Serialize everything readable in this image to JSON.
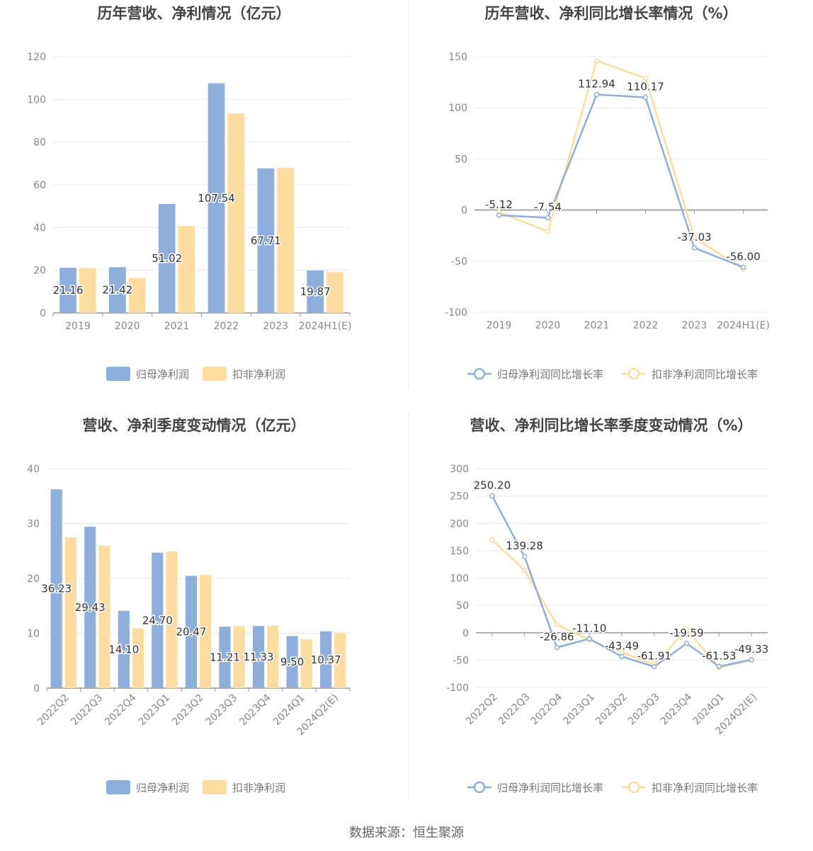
{
  "colors": {
    "primary": "#8eaedc",
    "secondary": "#fedc9f",
    "grid": "#e8e8ee",
    "axis": "#999999"
  },
  "source": "数据来源：恒生聚源",
  "chart_data": [
    {
      "id": "annual-values",
      "type": "bar",
      "title": "历年营收、净利情况（亿元）",
      "categories": [
        "2019",
        "2020",
        "2021",
        "2022",
        "2023",
        "2024H1(E)"
      ],
      "series": [
        {
          "name": "归母净利润",
          "values": [
            21.16,
            21.42,
            51.02,
            107.54,
            67.71,
            19.87
          ],
          "labels": [
            "21.16",
            "21.42",
            "51.02",
            "107.54",
            "67.71",
            "19.87"
          ]
        },
        {
          "name": "扣非净利润",
          "values": [
            21.0,
            16.4,
            40.7,
            93.4,
            68.0,
            19.1
          ]
        }
      ],
      "ylim": [
        0,
        120
      ],
      "yticks": [
        0,
        20,
        40,
        60,
        80,
        100,
        120
      ],
      "legend": "bottom"
    },
    {
      "id": "annual-growth",
      "type": "line",
      "title": "历年营收、净利同比增长率情况（%）",
      "categories": [
        "2019",
        "2020",
        "2021",
        "2022",
        "2023",
        "2024H1(E)"
      ],
      "series": [
        {
          "name": "归母净利润同比增长率",
          "values": [
            -5.12,
            -7.54,
            112.94,
            110.17,
            -37.03,
            -56.0
          ],
          "labels": [
            "-5.12",
            "-7.54",
            "112.94",
            "110.17",
            "-37.03",
            "-56.00"
          ]
        },
        {
          "name": "扣非净利润同比增长率",
          "values": [
            -2,
            -21,
            146,
            129,
            -27,
            -58
          ]
        }
      ],
      "ylim": [
        -100,
        150
      ],
      "yticks": [
        -100,
        -50,
        0,
        50,
        100,
        150
      ],
      "legend": "bottom"
    },
    {
      "id": "quarterly-values",
      "type": "bar",
      "title": "营收、净利季度变动情况（亿元）",
      "categories": [
        "2022Q2",
        "2022Q3",
        "2022Q4",
        "2023Q1",
        "2023Q2",
        "2023Q3",
        "2023Q4",
        "2024Q1",
        "2024Q2(E)"
      ],
      "series": [
        {
          "name": "归母净利润",
          "values": [
            36.23,
            29.43,
            14.1,
            24.7,
            20.47,
            11.21,
            11.33,
            9.5,
            10.37
          ],
          "labels": [
            "36.23",
            "29.43",
            "14.10",
            "24.70",
            "20.47",
            "11.21",
            "11.33",
            "9.50",
            "10.37"
          ]
        },
        {
          "name": "扣非净利润",
          "values": [
            27.5,
            26.0,
            10.9,
            24.9,
            20.6,
            11.3,
            11.4,
            8.9,
            10.1
          ]
        }
      ],
      "ylim": [
        0,
        40
      ],
      "yticks": [
        0,
        10,
        20,
        30,
        40
      ],
      "legend": "bottom"
    },
    {
      "id": "quarterly-growth",
      "type": "line",
      "title": "营收、净利同比增长率季度变动情况（%）",
      "categories": [
        "2022Q2",
        "2022Q3",
        "2022Q4",
        "2023Q1",
        "2023Q2",
        "2023Q3",
        "2023Q4",
        "2024Q1",
        "2024Q2(E)"
      ],
      "series": [
        {
          "name": "归母净利润同比增长率",
          "values": [
            250.2,
            139.28,
            -26.86,
            -11.1,
            -43.49,
            -61.91,
            -19.59,
            -61.53,
            -49.33
          ],
          "labels": [
            "250.20",
            "139.28",
            "-26.86",
            "-11.10",
            "-43.49",
            "-61.91",
            "-19.59",
            "-61.53",
            "-49.33"
          ]
        },
        {
          "name": "扣非净利润同比增长率",
          "values": [
            170,
            114,
            15,
            -13,
            -36,
            -58,
            6,
            -64,
            -50
          ]
        }
      ],
      "ylim": [
        -100,
        300
      ],
      "yticks": [
        -100,
        -50,
        0,
        50,
        100,
        150,
        200,
        250,
        300
      ],
      "legend": "bottom"
    }
  ]
}
